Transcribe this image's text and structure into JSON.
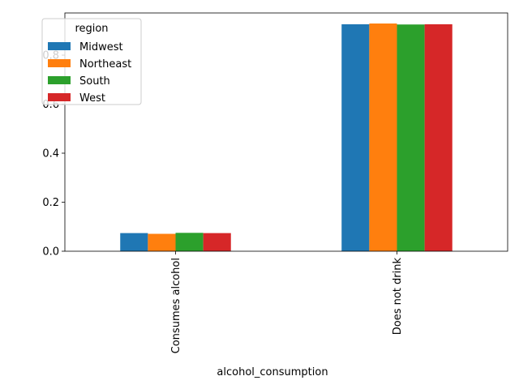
{
  "chart_data": {
    "type": "bar",
    "title": "",
    "xlabel": "alcohol_consumption",
    "ylabel": "",
    "categories": [
      "Consumes alcohol",
      "Does not drink"
    ],
    "series": [
      {
        "name": "Midwest",
        "color": "#1f77b4",
        "values": [
          0.074,
          0.926
        ]
      },
      {
        "name": "Northeast",
        "color": "#ff7f0e",
        "values": [
          0.071,
          0.929
        ]
      },
      {
        "name": "South",
        "color": "#2ca02c",
        "values": [
          0.075,
          0.925
        ]
      },
      {
        "name": "West",
        "color": "#d62728",
        "values": [
          0.074,
          0.926
        ]
      }
    ],
    "ylim": [
      0,
      0.972
    ],
    "yticks": [
      0.0,
      0.2,
      0.4,
      0.6,
      0.8
    ],
    "ytick_labels": [
      "0.0",
      "0.2",
      "0.4",
      "0.6",
      "0.8"
    ],
    "legend_title": "region",
    "legend_position": "top-left",
    "grid": false
  }
}
